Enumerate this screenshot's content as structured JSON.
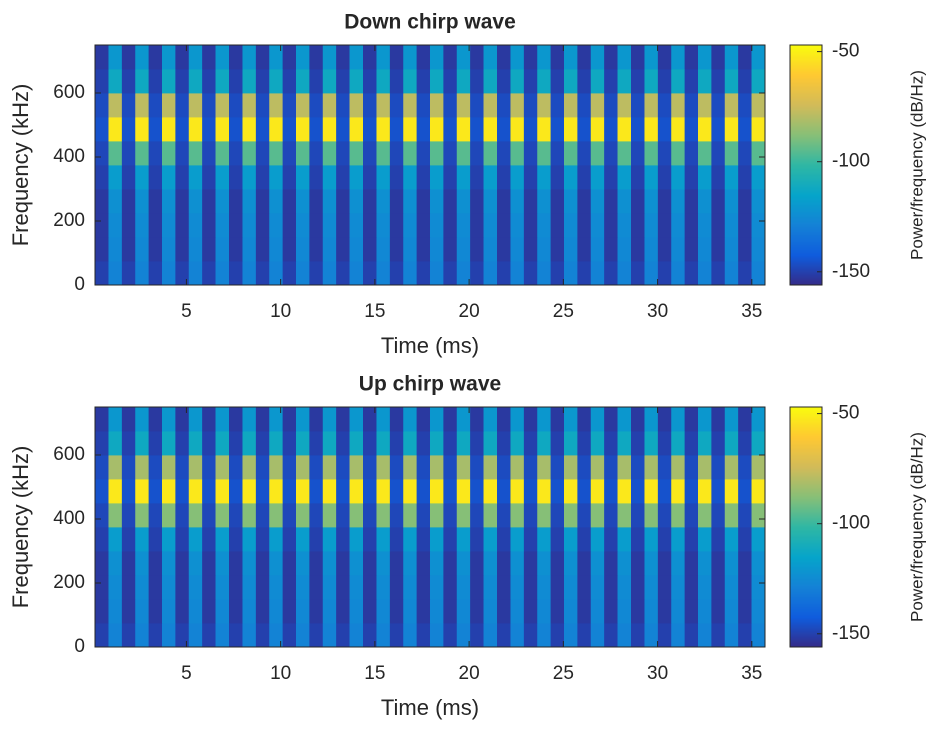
{
  "chart_data": [
    {
      "type": "heatmap",
      "title": "Down chirp wave",
      "xlabel": "Time (ms)",
      "ylabel": "Frequency (kHz)",
      "clabel": "Power/frequency (dB/Hz)",
      "x": [
        0.51,
        1.22,
        1.93,
        2.64,
        3.35,
        4.06,
        4.77,
        5.48,
        6.19,
        6.9,
        7.62,
        8.33,
        9.04,
        9.75,
        10.46,
        11.17,
        11.88,
        12.59,
        13.3,
        14.01,
        14.73,
        15.44,
        16.15,
        16.86,
        17.57,
        18.28,
        18.99,
        19.7,
        20.41,
        21.12,
        21.84,
        22.55,
        23.26,
        23.97,
        24.68,
        25.39,
        26.1,
        26.81,
        27.52,
        28.23,
        28.95,
        29.66,
        30.37,
        31.08,
        31.79,
        32.5,
        33.21,
        33.92,
        34.63,
        35.34
      ],
      "y": [
        37.5,
        112.5,
        187.5,
        262.5,
        337.5,
        412.5,
        487.5,
        562.5,
        637.5,
        712.5
      ],
      "z": [
        [
          -150,
          -128,
          -150,
          -128,
          -150,
          -128,
          -150,
          -128,
          -150,
          -128,
          -150,
          -128,
          -150,
          -128,
          -150,
          -128,
          -150,
          -128,
          -150,
          -128,
          -150,
          -128,
          -150,
          -128,
          -150,
          -128,
          -150,
          -128,
          -150,
          -128,
          -150,
          -128,
          -150,
          -128,
          -150,
          -128,
          -150,
          -128,
          -150,
          -128,
          -150,
          -128,
          -150,
          -128,
          -150,
          -128,
          -150,
          -128,
          -150,
          -128
        ],
        [
          -152,
          -126,
          -152,
          -126,
          -152,
          -126,
          -152,
          -126,
          -152,
          -126,
          -152,
          -126,
          -152,
          -126,
          -152,
          -126,
          -152,
          -126,
          -152,
          -126,
          -152,
          -126,
          -152,
          -126,
          -152,
          -126,
          -152,
          -126,
          -152,
          -126,
          -152,
          -126,
          -152,
          -126,
          -152,
          -126,
          -152,
          -126,
          -152,
          -126,
          -152,
          -126,
          -152,
          -126,
          -152,
          -126,
          -152,
          -126,
          -152,
          -126
        ],
        [
          -152,
          -125,
          -152,
          -125,
          -152,
          -125,
          -152,
          -125,
          -152,
          -125,
          -152,
          -125,
          -152,
          -125,
          -152,
          -125,
          -152,
          -125,
          -152,
          -125,
          -152,
          -125,
          -152,
          -125,
          -152,
          -125,
          -152,
          -125,
          -152,
          -125,
          -152,
          -125,
          -152,
          -125,
          -152,
          -125,
          -152,
          -125,
          -152,
          -125,
          -152,
          -125,
          -152,
          -125,
          -152,
          -125,
          -152,
          -125,
          -152,
          -125
        ],
        [
          -152,
          -123,
          -152,
          -123,
          -152,
          -123,
          -152,
          -123,
          -152,
          -123,
          -152,
          -123,
          -152,
          -123,
          -152,
          -123,
          -152,
          -123,
          -152,
          -123,
          -152,
          -123,
          -152,
          -123,
          -152,
          -123,
          -152,
          -123,
          -152,
          -123,
          -152,
          -123,
          -152,
          -123,
          -152,
          -123,
          -152,
          -123,
          -152,
          -123,
          -152,
          -123,
          -152,
          -123,
          -152,
          -123,
          -152,
          -123,
          -152,
          -123
        ],
        [
          -150,
          -118,
          -150,
          -118,
          -150,
          -118,
          -150,
          -118,
          -150,
          -118,
          -150,
          -118,
          -150,
          -118,
          -150,
          -118,
          -150,
          -118,
          -150,
          -118,
          -150,
          -118,
          -150,
          -118,
          -150,
          -118,
          -150,
          -118,
          -150,
          -118,
          -150,
          -118,
          -150,
          -118,
          -150,
          -118,
          -150,
          -118,
          -150,
          -118,
          -150,
          -118,
          -150,
          -118,
          -150,
          -118,
          -150,
          -118,
          -150,
          -118
        ],
        [
          -148,
          -95,
          -148,
          -95,
          -148,
          -95,
          -148,
          -95,
          -148,
          -95,
          -148,
          -95,
          -148,
          -95,
          -148,
          -95,
          -148,
          -95,
          -148,
          -95,
          -148,
          -95,
          -148,
          -95,
          -148,
          -95,
          -148,
          -95,
          -148,
          -95,
          -148,
          -95,
          -148,
          -95,
          -148,
          -95,
          -148,
          -95,
          -148,
          -95,
          -148,
          -95,
          -148,
          -95,
          -148,
          -95,
          -148,
          -95,
          -148,
          -95
        ],
        [
          -145,
          -52,
          -145,
          -52,
          -145,
          -52,
          -145,
          -52,
          -145,
          -52,
          -145,
          -52,
          -145,
          -52,
          -145,
          -52,
          -145,
          -52,
          -145,
          -52,
          -145,
          -52,
          -145,
          -52,
          -145,
          -52,
          -145,
          -52,
          -145,
          -52,
          -145,
          -52,
          -145,
          -52,
          -145,
          -52,
          -145,
          -52,
          -145,
          -52,
          -145,
          -52,
          -145,
          -52,
          -145,
          -52,
          -145,
          -52,
          -145,
          -52
        ],
        [
          -147,
          -78,
          -147,
          -78,
          -147,
          -78,
          -147,
          -78,
          -147,
          -78,
          -147,
          -78,
          -147,
          -78,
          -147,
          -78,
          -147,
          -78,
          -147,
          -78,
          -147,
          -78,
          -147,
          -78,
          -147,
          -78,
          -147,
          -78,
          -147,
          -78,
          -147,
          -78,
          -147,
          -78,
          -147,
          -78,
          -147,
          -78,
          -147,
          -78,
          -147,
          -78,
          -147,
          -78,
          -147,
          -78,
          -147,
          -78,
          -147,
          -78
        ],
        [
          -150,
          -112,
          -150,
          -112,
          -150,
          -112,
          -150,
          -112,
          -150,
          -112,
          -150,
          -112,
          -150,
          -112,
          -150,
          -112,
          -150,
          -112,
          -150,
          -112,
          -150,
          -112,
          -150,
          -112,
          -150,
          -112,
          -150,
          -112,
          -150,
          -112,
          -150,
          -112,
          -150,
          -112,
          -150,
          -112,
          -150,
          -112,
          -150,
          -112,
          -150,
          -112,
          -150,
          -112,
          -150,
          -112,
          -150,
          -112,
          -150,
          -112
        ],
        [
          -152,
          -120,
          -152,
          -120,
          -152,
          -120,
          -152,
          -120,
          -152,
          -120,
          -152,
          -120,
          -152,
          -120,
          -152,
          -120,
          -152,
          -120,
          -152,
          -120,
          -152,
          -120,
          -152,
          -120,
          -152,
          -120,
          -152,
          -120,
          -152,
          -120,
          -152,
          -120,
          -152,
          -120,
          -152,
          -120,
          -152,
          -120,
          -152,
          -120,
          -152,
          -120,
          -152,
          -120,
          -152,
          -120,
          -152,
          -120,
          -152,
          -120
        ]
      ],
      "xlim": [
        0.15,
        35.7
      ],
      "ylim": [
        0,
        750
      ],
      "xticks": [
        5,
        10,
        15,
        20,
        25,
        30,
        35
      ],
      "yticks": [
        0,
        200,
        400,
        600
      ],
      "clim": [
        -156,
        -47
      ],
      "cticks": [
        -50,
        -100,
        -150
      ],
      "colormap": [
        "#352a87",
        "#0f5cdd",
        "#1481d6",
        "#06a4ca",
        "#2eb7a4",
        "#87bf77",
        "#d1bb59",
        "#fec832",
        "#f9fb0e"
      ]
    },
    {
      "type": "heatmap",
      "title": "Up chirp wave",
      "xlabel": "Time (ms)",
      "ylabel": "Frequency (kHz)",
      "clabel": "Power/frequency (dB/Hz)",
      "x": [
        0.51,
        1.22,
        1.93,
        2.64,
        3.35,
        4.06,
        4.77,
        5.48,
        6.19,
        6.9,
        7.62,
        8.33,
        9.04,
        9.75,
        10.46,
        11.17,
        11.88,
        12.59,
        13.3,
        14.01,
        14.73,
        15.44,
        16.15,
        16.86,
        17.57,
        18.28,
        18.99,
        19.7,
        20.41,
        21.12,
        21.84,
        22.55,
        23.26,
        23.97,
        24.68,
        25.39,
        26.1,
        26.81,
        27.52,
        28.23,
        28.95,
        29.66,
        30.37,
        31.08,
        31.79,
        32.5,
        33.21,
        33.92,
        34.63,
        35.34
      ],
      "y": [
        37.5,
        112.5,
        187.5,
        262.5,
        337.5,
        412.5,
        487.5,
        562.5,
        637.5,
        712.5
      ],
      "z": [
        [
          -150,
          -128,
          -150,
          -128,
          -150,
          -128,
          -150,
          -128,
          -150,
          -128,
          -150,
          -128,
          -150,
          -128,
          -150,
          -128,
          -150,
          -128,
          -150,
          -128,
          -150,
          -128,
          -150,
          -128,
          -150,
          -128,
          -150,
          -128,
          -150,
          -128,
          -150,
          -128,
          -150,
          -128,
          -150,
          -128,
          -150,
          -128,
          -150,
          -128,
          -150,
          -128,
          -150,
          -128,
          -150,
          -128,
          -150,
          -128,
          -150,
          -128
        ],
        [
          -152,
          -126,
          -152,
          -126,
          -152,
          -126,
          -152,
          -126,
          -152,
          -126,
          -152,
          -126,
          -152,
          -126,
          -152,
          -126,
          -152,
          -126,
          -152,
          -126,
          -152,
          -126,
          -152,
          -126,
          -152,
          -126,
          -152,
          -126,
          -152,
          -126,
          -152,
          -126,
          -152,
          -126,
          -152,
          -126,
          -152,
          -126,
          -152,
          -126,
          -152,
          -126,
          -152,
          -126,
          -152,
          -126,
          -152,
          -126,
          -152,
          -126
        ],
        [
          -152,
          -125,
          -152,
          -125,
          -152,
          -125,
          -152,
          -125,
          -152,
          -125,
          -152,
          -125,
          -152,
          -125,
          -152,
          -125,
          -152,
          -125,
          -152,
          -125,
          -152,
          -125,
          -152,
          -125,
          -152,
          -125,
          -152,
          -125,
          -152,
          -125,
          -152,
          -125,
          -152,
          -125,
          -152,
          -125,
          -152,
          -125,
          -152,
          -125,
          -152,
          -125,
          -152,
          -125,
          -152,
          -125,
          -152,
          -125,
          -152,
          -125
        ],
        [
          -152,
          -123,
          -152,
          -123,
          -152,
          -123,
          -152,
          -123,
          -152,
          -123,
          -152,
          -123,
          -152,
          -123,
          -152,
          -123,
          -152,
          -123,
          -152,
          -123,
          -152,
          -123,
          -152,
          -123,
          -152,
          -123,
          -152,
          -123,
          -152,
          -123,
          -152,
          -123,
          -152,
          -123,
          -152,
          -123,
          -152,
          -123,
          -152,
          -123,
          -152,
          -123,
          -152,
          -123,
          -152,
          -123,
          -152,
          -123,
          -152,
          -123
        ],
        [
          -150,
          -118,
          -150,
          -118,
          -150,
          -118,
          -150,
          -118,
          -150,
          -118,
          -150,
          -118,
          -150,
          -118,
          -150,
          -118,
          -150,
          -118,
          -150,
          -118,
          -150,
          -118,
          -150,
          -118,
          -150,
          -118,
          -150,
          -118,
          -150,
          -118,
          -150,
          -118,
          -150,
          -118,
          -150,
          -118,
          -150,
          -118,
          -150,
          -118,
          -150,
          -118,
          -150,
          -118,
          -150,
          -118,
          -150,
          -118,
          -150,
          -118
        ],
        [
          -148,
          -88,
          -148,
          -88,
          -148,
          -88,
          -148,
          -88,
          -148,
          -88,
          -148,
          -88,
          -148,
          -88,
          -148,
          -88,
          -148,
          -88,
          -148,
          -88,
          -148,
          -88,
          -148,
          -88,
          -148,
          -88,
          -148,
          -88,
          -148,
          -88,
          -148,
          -88,
          -148,
          -88,
          -148,
          -88,
          -148,
          -88,
          -148,
          -88,
          -148,
          -88,
          -148,
          -88,
          -148,
          -88,
          -148,
          -88,
          -148,
          -88
        ],
        [
          -145,
          -52,
          -145,
          -52,
          -145,
          -52,
          -145,
          -52,
          -145,
          -52,
          -145,
          -52,
          -145,
          -52,
          -145,
          -52,
          -145,
          -52,
          -145,
          -52,
          -145,
          -52,
          -145,
          -52,
          -145,
          -52,
          -145,
          -52,
          -145,
          -52,
          -145,
          -52,
          -145,
          -52,
          -145,
          -52,
          -145,
          -52,
          -145,
          -52,
          -145,
          -52,
          -145,
          -52,
          -145,
          -52,
          -145,
          -52,
          -145,
          -52
        ],
        [
          -147,
          -82,
          -147,
          -82,
          -147,
          -82,
          -147,
          -82,
          -147,
          -82,
          -147,
          -82,
          -147,
          -82,
          -147,
          -82,
          -147,
          -82,
          -147,
          -82,
          -147,
          -82,
          -147,
          -82,
          -147,
          -82,
          -147,
          -82,
          -147,
          -82,
          -147,
          -82,
          -147,
          -82,
          -147,
          -82,
          -147,
          -82,
          -147,
          -82,
          -147,
          -82,
          -147,
          -82,
          -147,
          -82,
          -147,
          -82,
          -147,
          -82
        ],
        [
          -150,
          -112,
          -150,
          -112,
          -150,
          -112,
          -150,
          -112,
          -150,
          -112,
          -150,
          -112,
          -150,
          -112,
          -150,
          -112,
          -150,
          -112,
          -150,
          -112,
          -150,
          -112,
          -150,
          -112,
          -150,
          -112,
          -150,
          -112,
          -150,
          -112,
          -150,
          -112,
          -150,
          -112,
          -150,
          -112,
          -150,
          -112,
          -150,
          -112,
          -150,
          -112,
          -150,
          -112,
          -150,
          -112,
          -150,
          -112,
          -150,
          -112
        ],
        [
          -152,
          -120,
          -152,
          -120,
          -152,
          -120,
          -152,
          -120,
          -152,
          -120,
          -152,
          -120,
          -152,
          -120,
          -152,
          -120,
          -152,
          -120,
          -152,
          -120,
          -152,
          -120,
          -152,
          -120,
          -152,
          -120,
          -152,
          -120,
          -152,
          -120,
          -152,
          -120,
          -152,
          -120,
          -152,
          -120,
          -152,
          -120,
          -152,
          -120,
          -152,
          -120,
          -152,
          -120,
          -152,
          -120,
          -152,
          -120,
          -152,
          -120
        ]
      ],
      "xlim": [
        0.15,
        35.7
      ],
      "ylim": [
        0,
        750
      ],
      "xticks": [
        5,
        10,
        15,
        20,
        25,
        30,
        35
      ],
      "yticks": [
        0,
        200,
        400,
        600
      ],
      "clim": [
        -156,
        -47
      ],
      "cticks": [
        -50,
        -100,
        -150
      ],
      "colormap": [
        "#352a87",
        "#0f5cdd",
        "#1481d6",
        "#06a4ca",
        "#2eb7a4",
        "#87bf77",
        "#d1bb59",
        "#fec832",
        "#f9fb0e"
      ]
    }
  ]
}
